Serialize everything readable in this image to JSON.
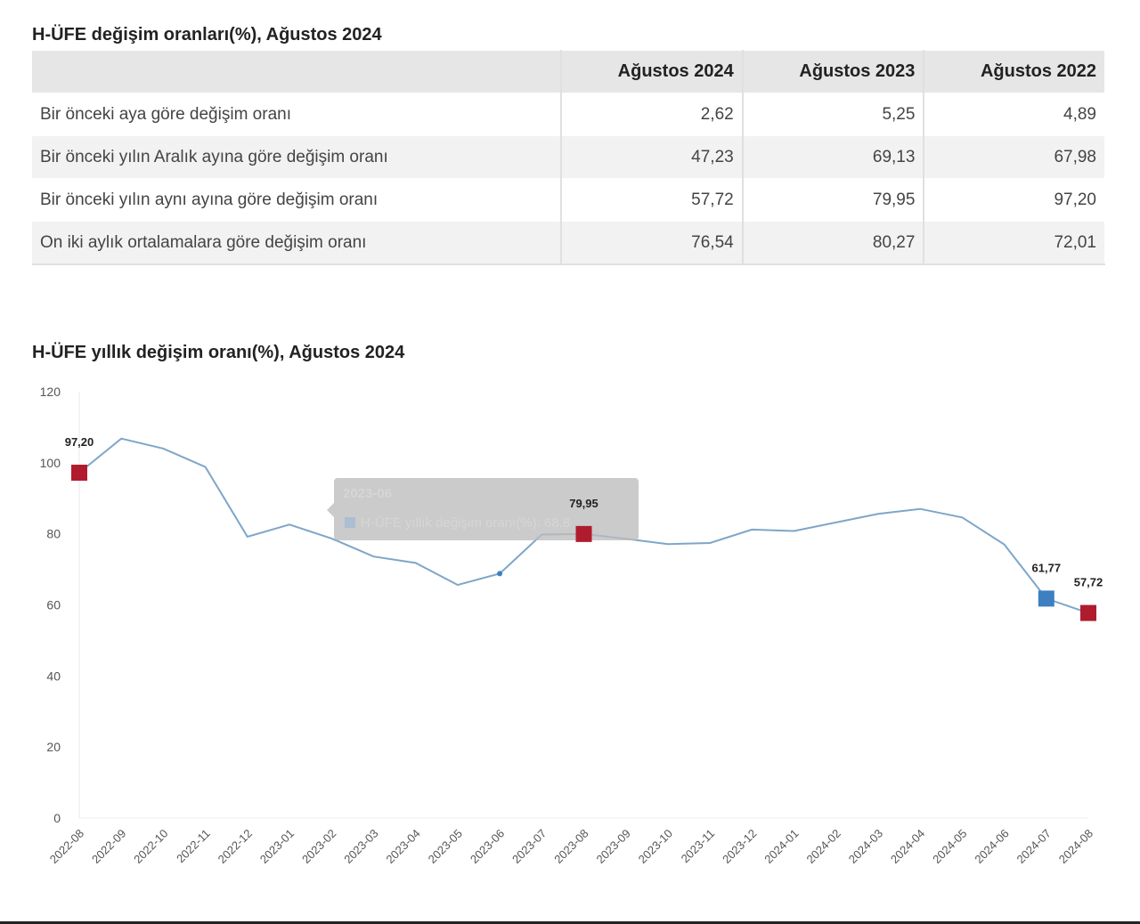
{
  "table_title": "H-ÜFE değişim oranları(%), Ağustos 2024",
  "table": {
    "headers": [
      "",
      "Ağustos 2024",
      "Ağustos 2023",
      "Ağustos 2022"
    ],
    "rows": [
      {
        "label": "Bir önceki aya göre değişim oranı",
        "values": [
          "2,62",
          "5,25",
          "4,89"
        ]
      },
      {
        "label": "Bir önceki yılın Aralık ayına göre değişim oranı",
        "values": [
          "47,23",
          "69,13",
          "67,98"
        ]
      },
      {
        "label": "Bir önceki yılın aynı ayına göre değişim oranı",
        "values": [
          "57,72",
          "79,95",
          "97,20"
        ]
      },
      {
        "label": "On iki aylık ortalamalara göre değişim oranı",
        "values": [
          "76,54",
          "80,27",
          "72,01"
        ]
      }
    ]
  },
  "chart_data": {
    "type": "line",
    "title": "H-ÜFE yıllık değişim oranı(%), Ağustos 2024",
    "xlabel": "",
    "ylabel": "",
    "ylim": [
      0,
      120
    ],
    "yticks": [
      0,
      20,
      40,
      60,
      80,
      100,
      120
    ],
    "categories": [
      "2022-08",
      "2022-09",
      "2022-10",
      "2022-11",
      "2022-12",
      "2023-01",
      "2023-02",
      "2023-03",
      "2023-04",
      "2023-05",
      "2023-06",
      "2023-07",
      "2023-08",
      "2023-09",
      "2023-10",
      "2023-11",
      "2023-12",
      "2024-01",
      "2024-02",
      "2024-03",
      "2024-04",
      "2024-05",
      "2024-06",
      "2024-07",
      "2024-08"
    ],
    "series": [
      {
        "name": "H-ÜFE yıllık değişim oranı(%)",
        "color": "#7ea6c9",
        "values": [
          97.2,
          106.8,
          104.0,
          98.8,
          79.2,
          82.6,
          78.7,
          73.6,
          71.8,
          65.6,
          68.8,
          79.8,
          79.95,
          78.6,
          77.1,
          77.4,
          81.2,
          80.8,
          83.2,
          85.6,
          87.0,
          84.6,
          77.0,
          61.77,
          57.72
        ]
      }
    ],
    "highlighted_points": [
      {
        "category": "2022-08",
        "value": 97.2,
        "label": "97,20",
        "color": "#b01c2e"
      },
      {
        "category": "2023-08",
        "value": 79.95,
        "label": "79,95",
        "color": "#b01c2e"
      },
      {
        "category": "2024-07",
        "value": 61.77,
        "label": "61,77",
        "color": "#3d7fbf"
      },
      {
        "category": "2024-08",
        "value": 57.72,
        "label": "57,72",
        "color": "#b01c2e"
      }
    ],
    "tooltip": {
      "category": "2023-06",
      "text": "H-ÜFE yıllık değişim oranı(%): 68,8"
    }
  }
}
